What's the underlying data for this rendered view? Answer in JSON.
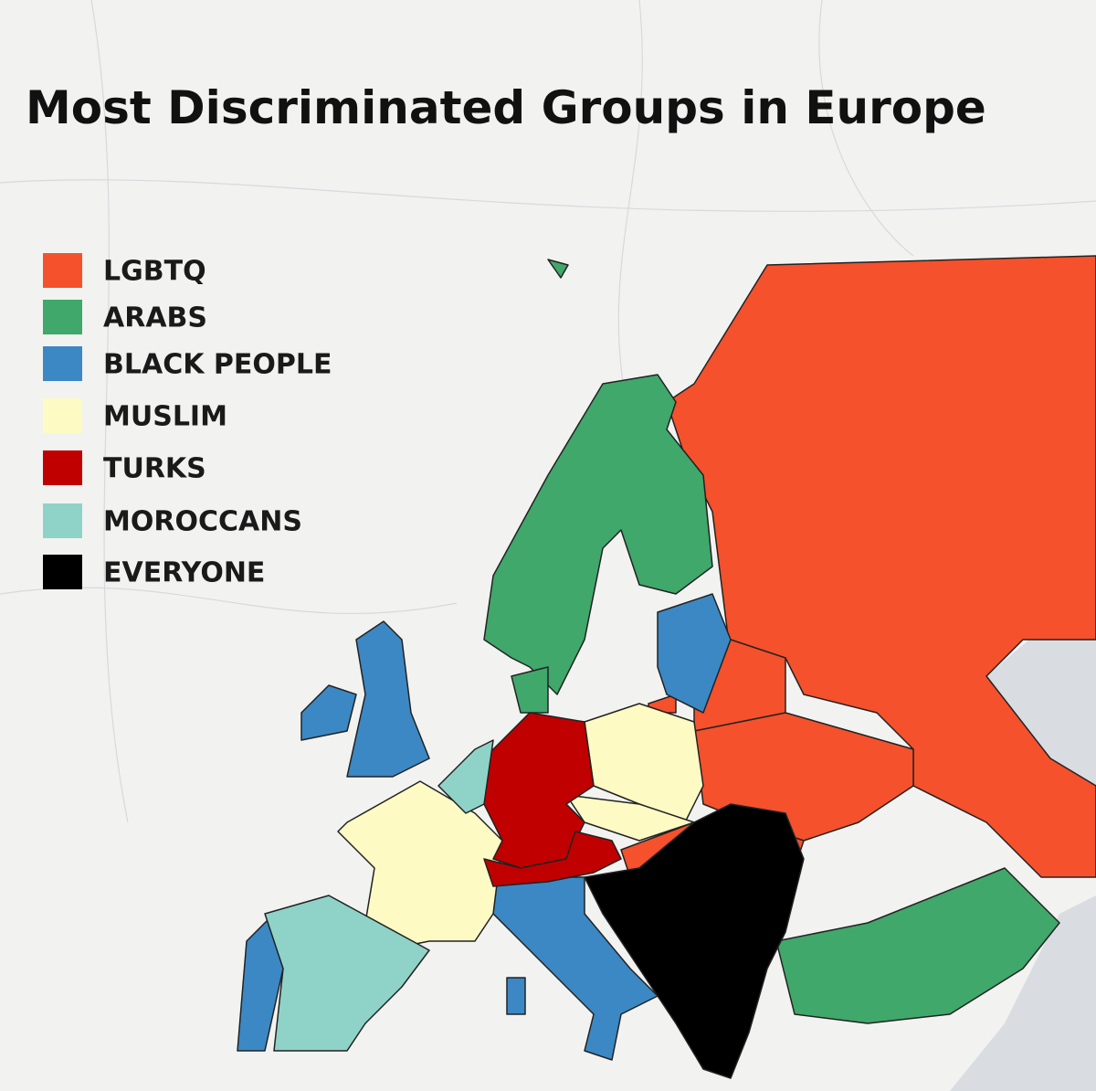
{
  "title": "Most Discriminated Groups in Europe",
  "legend": [
    {
      "label": "LGBTQ",
      "color": "#f4512c"
    },
    {
      "label": "ARABS",
      "color": "#3fa86a"
    },
    {
      "label": "BLACK PEOPLE",
      "color": "#3b88c4"
    },
    {
      "label": "MUSLIM",
      "color": "#fdfac4"
    },
    {
      "label": "TURKS",
      "color": "#c00000"
    },
    {
      "label": "MOROCCANS",
      "color": "#8fd3c8"
    },
    {
      "label": "EVERYONE",
      "color": "#000000"
    }
  ]
}
